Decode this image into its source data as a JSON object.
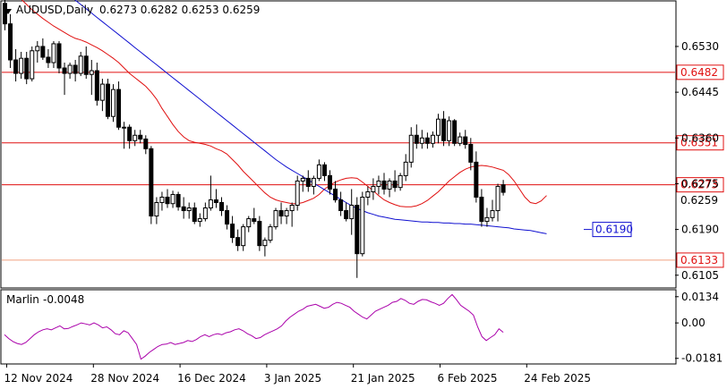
{
  "header": {
    "symbol": "AUDUSD,Daily",
    "ohlc": "0.6273 0.6282 0.6253 0.6259"
  },
  "indicator": {
    "name": "Marlin",
    "value": "-0.0048",
    "color": "#aa00aa"
  },
  "colors": {
    "up_body": "#ffffff",
    "down_body": "#000000",
    "wick": "#000000",
    "ma_fast": "#e01010",
    "ma_slow": "#1010d0",
    "level_line": "#e01010",
    "level_low": "#f0a080",
    "blue_tag": "#1010d0"
  },
  "chart_data": [
    {
      "type": "candlestick",
      "title": "AUDUSD,Daily",
      "x_ticks": [
        "12 Nov 2024",
        "28 Nov 2024",
        "16 Dec 2024",
        "3 Jan 2025",
        "21 Jan 2025",
        "6 Feb 2025",
        "24 Feb 2025"
      ],
      "y_ticks": [
        "0.6530",
        "0.6445",
        "0.6360",
        "0.6275",
        "0.6190",
        "0.6105"
      ],
      "ylim": [
        0.6083,
        0.6613
      ],
      "levels": [
        {
          "value": 0.6482,
          "label": "0.6482"
        },
        {
          "value": 0.6351,
          "label": "0.6351"
        },
        {
          "value": 0.6273,
          "label": "0.6273"
        },
        {
          "value": 0.6133,
          "label": "0.6133"
        }
      ],
      "price_tag": {
        "value": 0.6259,
        "label": "0.6259"
      },
      "ma_tag": {
        "value": 0.619,
        "label": "0.6190"
      },
      "candles": [
        [
          0.661,
          0.6625,
          0.656,
          0.6572
        ],
        [
          0.6572,
          0.659,
          0.649,
          0.6505
        ],
        [
          0.6505,
          0.6525,
          0.6465,
          0.648
        ],
        [
          0.648,
          0.652,
          0.647,
          0.6508
        ],
        [
          0.6508,
          0.652,
          0.646,
          0.647
        ],
        [
          0.647,
          0.653,
          0.6465,
          0.6522
        ],
        [
          0.6522,
          0.654,
          0.65,
          0.653
        ],
        [
          0.653,
          0.6545,
          0.6505,
          0.651
        ],
        [
          0.651,
          0.6525,
          0.649,
          0.65
        ],
        [
          0.65,
          0.654,
          0.649,
          0.6535
        ],
        [
          0.6535,
          0.654,
          0.648,
          0.649
        ],
        [
          0.649,
          0.65,
          0.644,
          0.648
        ],
        [
          0.648,
          0.65,
          0.647,
          0.6495
        ],
        [
          0.6495,
          0.6505,
          0.6465,
          0.648
        ],
        [
          0.648,
          0.652,
          0.6475,
          0.6512
        ],
        [
          0.6512,
          0.653,
          0.647,
          0.6478
        ],
        [
          0.6478,
          0.6505,
          0.644,
          0.6485
        ],
        [
          0.6485,
          0.65,
          0.642,
          0.643
        ],
        [
          0.643,
          0.647,
          0.641,
          0.646
        ],
        [
          0.646,
          0.647,
          0.6395,
          0.64
        ],
        [
          0.64,
          0.646,
          0.639,
          0.645
        ],
        [
          0.645,
          0.6465,
          0.6375,
          0.638
        ],
        [
          0.638,
          0.639,
          0.634,
          0.638
        ],
        [
          0.638,
          0.6385,
          0.634,
          0.6355
        ],
        [
          0.6355,
          0.6375,
          0.6345,
          0.6365
        ],
        [
          0.6365,
          0.6375,
          0.635,
          0.6358
        ],
        [
          0.6358,
          0.6365,
          0.633,
          0.634
        ],
        [
          0.634,
          0.6345,
          0.62,
          0.6215
        ],
        [
          0.6215,
          0.625,
          0.62,
          0.624
        ],
        [
          0.624,
          0.626,
          0.6225,
          0.625
        ],
        [
          0.625,
          0.6265,
          0.623,
          0.6238
        ],
        [
          0.6238,
          0.6262,
          0.623,
          0.6255
        ],
        [
          0.6255,
          0.626,
          0.6225,
          0.6232
        ],
        [
          0.6232,
          0.625,
          0.621,
          0.6225
        ],
        [
          0.6225,
          0.624,
          0.621,
          0.623
        ],
        [
          0.623,
          0.624,
          0.62,
          0.6205
        ],
        [
          0.6205,
          0.622,
          0.6195,
          0.621
        ],
        [
          0.621,
          0.624,
          0.6205,
          0.623
        ],
        [
          0.623,
          0.629,
          0.6225,
          0.6245
        ],
        [
          0.6245,
          0.6265,
          0.623,
          0.624
        ],
        [
          0.624,
          0.625,
          0.6215,
          0.6225
        ],
        [
          0.6225,
          0.6235,
          0.619,
          0.62
        ],
        [
          0.62,
          0.6215,
          0.6165,
          0.6175
        ],
        [
          0.6175,
          0.619,
          0.615,
          0.616
        ],
        [
          0.616,
          0.62,
          0.615,
          0.6195
        ],
        [
          0.6195,
          0.6215,
          0.6185,
          0.621
        ],
        [
          0.621,
          0.623,
          0.62,
          0.6205
        ],
        [
          0.6205,
          0.6215,
          0.615,
          0.616
        ],
        [
          0.616,
          0.6175,
          0.614,
          0.617
        ],
        [
          0.617,
          0.62,
          0.6165,
          0.6195
        ],
        [
          0.6195,
          0.623,
          0.619,
          0.6225
        ],
        [
          0.6225,
          0.624,
          0.62,
          0.6215
        ],
        [
          0.6215,
          0.623,
          0.62,
          0.6225
        ],
        [
          0.6225,
          0.624,
          0.6195,
          0.6235
        ],
        [
          0.6235,
          0.629,
          0.6225,
          0.628
        ],
        [
          0.628,
          0.629,
          0.626,
          0.6285
        ],
        [
          0.6285,
          0.63,
          0.626,
          0.627
        ],
        [
          0.627,
          0.629,
          0.6255,
          0.6285
        ],
        [
          0.6285,
          0.632,
          0.628,
          0.631
        ],
        [
          0.631,
          0.6315,
          0.628,
          0.629
        ],
        [
          0.629,
          0.63,
          0.6255,
          0.6265
        ],
        [
          0.6265,
          0.628,
          0.624,
          0.6245
        ],
        [
          0.6245,
          0.626,
          0.6215,
          0.6225
        ],
        [
          0.6225,
          0.624,
          0.6205,
          0.621
        ],
        [
          0.621,
          0.6265,
          0.618,
          0.6235
        ],
        [
          0.6235,
          0.625,
          0.61,
          0.6145
        ],
        [
          0.6145,
          0.626,
          0.614,
          0.625
        ],
        [
          0.625,
          0.627,
          0.6235,
          0.626
        ],
        [
          0.626,
          0.6285,
          0.6245,
          0.627
        ],
        [
          0.627,
          0.629,
          0.6255,
          0.628
        ],
        [
          0.628,
          0.6295,
          0.6255,
          0.6265
        ],
        [
          0.6265,
          0.6285,
          0.625,
          0.628
        ],
        [
          0.628,
          0.63,
          0.626,
          0.6268
        ],
        [
          0.6268,
          0.6295,
          0.6262,
          0.629
        ],
        [
          0.629,
          0.633,
          0.628,
          0.6315
        ],
        [
          0.6315,
          0.638,
          0.6305,
          0.6365
        ],
        [
          0.6365,
          0.6385,
          0.634,
          0.635
        ],
        [
          0.635,
          0.6375,
          0.634,
          0.636
        ],
        [
          0.636,
          0.637,
          0.634,
          0.635
        ],
        [
          0.635,
          0.6372,
          0.6342,
          0.6365
        ],
        [
          0.6365,
          0.6405,
          0.635,
          0.6395
        ],
        [
          0.6395,
          0.641,
          0.6345,
          0.6355
        ],
        [
          0.6355,
          0.64,
          0.6345,
          0.6392
        ],
        [
          0.6392,
          0.6395,
          0.6345,
          0.635
        ],
        [
          0.635,
          0.637,
          0.6345,
          0.6362
        ],
        [
          0.6362,
          0.6375,
          0.634,
          0.6348
        ],
        [
          0.6348,
          0.636,
          0.63,
          0.6315
        ],
        [
          0.6315,
          0.6335,
          0.624,
          0.625
        ],
        [
          0.625,
          0.6265,
          0.6195,
          0.6205
        ],
        [
          0.6205,
          0.623,
          0.6195,
          0.6212
        ],
        [
          0.6212,
          0.6245,
          0.6205,
          0.6225
        ],
        [
          0.6225,
          0.6275,
          0.6205,
          0.627
        ],
        [
          0.6273,
          0.6282,
          0.6253,
          0.6259
        ]
      ],
      "ma_fast": [
        0.666,
        0.6645,
        0.663,
        0.6618,
        0.6608,
        0.6598,
        0.659,
        0.6582,
        0.6575,
        0.6568,
        0.6562,
        0.6556,
        0.655,
        0.6545,
        0.6542,
        0.6538,
        0.6533,
        0.6528,
        0.6522,
        0.6515,
        0.6508,
        0.65,
        0.649,
        0.648,
        0.6472,
        0.6464,
        0.6456,
        0.6445,
        0.6432,
        0.6415,
        0.64,
        0.6385,
        0.6372,
        0.6362,
        0.6355,
        0.6352,
        0.635,
        0.6348,
        0.6345,
        0.634,
        0.6336,
        0.633,
        0.632,
        0.631,
        0.6298,
        0.6288,
        0.6278,
        0.6268,
        0.6258,
        0.625,
        0.6245,
        0.6242,
        0.624,
        0.6238,
        0.6238,
        0.624,
        0.6244,
        0.6248,
        0.6255,
        0.6265,
        0.6272,
        0.6278,
        0.6282,
        0.6285,
        0.6286,
        0.6285,
        0.6278,
        0.627,
        0.6262,
        0.6253,
        0.6245,
        0.624,
        0.6236,
        0.6233,
        0.6232,
        0.6232,
        0.6234,
        0.6238,
        0.6244,
        0.6252,
        0.626,
        0.627,
        0.628,
        0.6288,
        0.6296,
        0.6302,
        0.6306,
        0.6308,
        0.6309,
        0.6308,
        0.6306,
        0.6303,
        0.63,
        0.6292,
        0.628,
        0.6265,
        0.625,
        0.624,
        0.6238,
        0.6243,
        0.6253
      ],
      "ma_slow": [
        0.672,
        0.6712,
        0.6704,
        0.6696,
        0.6688,
        0.668,
        0.6672,
        0.6664,
        0.6656,
        0.6648,
        0.664,
        0.6632,
        0.6624,
        0.6616,
        0.6608,
        0.66,
        0.6592,
        0.6584,
        0.6576,
        0.6568,
        0.656,
        0.6552,
        0.6544,
        0.6536,
        0.6528,
        0.652,
        0.6512,
        0.6504,
        0.6496,
        0.6488,
        0.648,
        0.6472,
        0.6464,
        0.6456,
        0.6448,
        0.644,
        0.6432,
        0.6424,
        0.6416,
        0.6408,
        0.64,
        0.6392,
        0.6384,
        0.6376,
        0.6368,
        0.636,
        0.6352,
        0.6344,
        0.6336,
        0.6328,
        0.632,
        0.6313,
        0.6306,
        0.63,
        0.6294,
        0.6288,
        0.6282,
        0.6276,
        0.627,
        0.6264,
        0.6258,
        0.6252,
        0.6246,
        0.624,
        0.6234,
        0.6229,
        0.6225,
        0.6221,
        0.6218,
        0.6215,
        0.6213,
        0.6211,
        0.6209,
        0.6208,
        0.6207,
        0.6206,
        0.6205,
        0.6204,
        0.6204,
        0.6203,
        0.6203,
        0.6202,
        0.6202,
        0.6201,
        0.6201,
        0.62,
        0.62,
        0.6199,
        0.6198,
        0.6197,
        0.6196,
        0.6195,
        0.6194,
        0.6193,
        0.6191,
        0.619,
        0.6189,
        0.6188,
        0.6186,
        0.6184,
        0.6182
      ]
    },
    {
      "type": "line",
      "title": "Marlin -0.0048",
      "y_ticks": [
        "0.0134",
        "0.00",
        "-0.0181"
      ],
      "ylim": [
        -0.0205,
        0.0165
      ],
      "values": [
        -0.006,
        -0.008,
        -0.0095,
        -0.0105,
        -0.011,
        -0.01,
        -0.008,
        -0.006,
        -0.0045,
        -0.0035,
        -0.003,
        -0.0035,
        -0.0025,
        -0.0015,
        -0.003,
        -0.0028,
        -0.0018,
        -0.001,
        0.0,
        -0.0005,
        -0.001,
        0.0,
        -0.001,
        -0.0025,
        -0.002,
        -0.0035,
        -0.0055,
        -0.006,
        -0.004,
        -0.005,
        -0.008,
        -0.011,
        -0.0185,
        -0.017,
        -0.015,
        -0.0135,
        -0.012,
        -0.011,
        -0.0108,
        -0.01,
        -0.011,
        -0.0105,
        -0.01,
        -0.009,
        -0.0095,
        -0.0085,
        -0.007,
        -0.006,
        -0.007,
        -0.006,
        -0.0055,
        -0.006,
        -0.005,
        -0.0045,
        -0.0035,
        -0.003,
        -0.004,
        -0.0055,
        -0.0065,
        -0.008,
        -0.0075,
        -0.006,
        -0.005,
        -0.004,
        -0.003,
        -0.0015,
        0.001,
        0.003,
        0.0045,
        0.006,
        0.007,
        0.0085,
        0.009,
        0.0095,
        0.0085,
        0.0075,
        0.008,
        0.0095,
        0.0105,
        0.01,
        0.009,
        0.008,
        0.006,
        0.0045,
        0.003,
        0.002,
        0.004,
        0.006,
        0.007,
        0.008,
        0.009,
        0.0105,
        0.011,
        0.0125,
        0.0115,
        0.01,
        0.0095,
        0.011,
        0.012,
        0.0118,
        0.0108,
        0.01,
        0.009,
        0.01,
        0.0125,
        0.0145,
        0.012,
        0.009,
        0.0075,
        0.006,
        0.004,
        -0.002,
        -0.007,
        -0.009,
        -0.0075,
        -0.006,
        -0.003,
        -0.0048
      ]
    }
  ]
}
